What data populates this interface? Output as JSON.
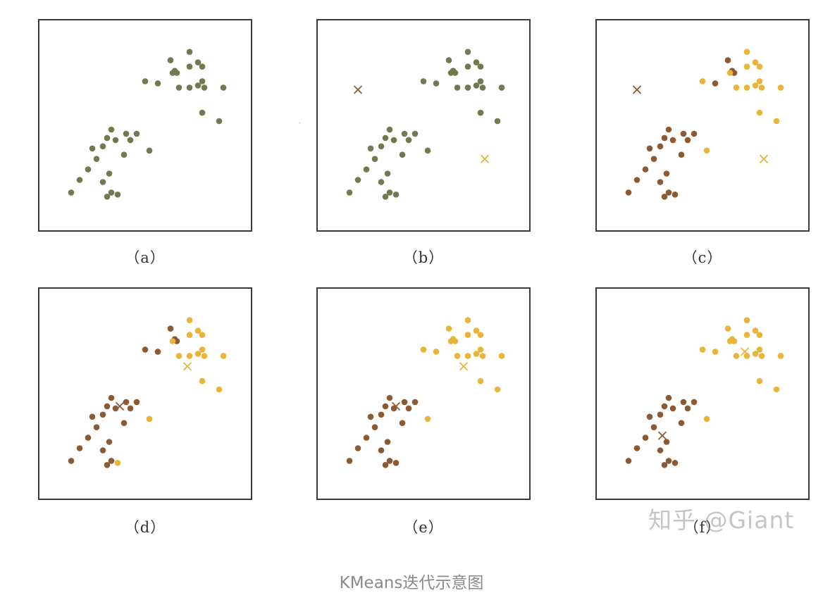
{
  "colors": {
    "gray": "#6f7a4e",
    "brown": "#8b5a33",
    "gold": "#e8b53a",
    "frame": "#3a3a3a"
  },
  "caption": "KMeans迭代示意图",
  "watermark": "知乎 @Giant",
  "points": [
    [
      0.15,
      0.82
    ],
    [
      0.19,
      0.76
    ],
    [
      0.23,
      0.71
    ],
    [
      0.27,
      0.66
    ],
    [
      0.3,
      0.6
    ],
    [
      0.25,
      0.61
    ],
    [
      0.32,
      0.56
    ],
    [
      0.34,
      0.52
    ],
    [
      0.36,
      0.57
    ],
    [
      0.41,
      0.54
    ],
    [
      0.43,
      0.57
    ],
    [
      0.46,
      0.54
    ],
    [
      0.4,
      0.64
    ],
    [
      0.33,
      0.73
    ],
    [
      0.3,
      0.77
    ],
    [
      0.34,
      0.82
    ],
    [
      0.32,
      0.84
    ],
    [
      0.37,
      0.83
    ],
    [
      0.52,
      0.62
    ],
    [
      0.5,
      0.29
    ],
    [
      0.56,
      0.3
    ],
    [
      0.62,
      0.19
    ],
    [
      0.64,
      0.24
    ],
    [
      0.65,
      0.25
    ],
    [
      0.63,
      0.25
    ],
    [
      0.66,
      0.32
    ],
    [
      0.71,
      0.15
    ],
    [
      0.71,
      0.22
    ],
    [
      0.71,
      0.32
    ],
    [
      0.75,
      0.2
    ],
    [
      0.77,
      0.22
    ],
    [
      0.75,
      0.31
    ],
    [
      0.77,
      0.29
    ],
    [
      0.78,
      0.32
    ],
    [
      0.87,
      0.32
    ],
    [
      0.77,
      0.44
    ],
    [
      0.85,
      0.48
    ]
  ],
  "panels": [
    {
      "id": "a",
      "label": "（a）",
      "point_clusters": "0000000000000000000000000000000000000",
      "centroids": []
    },
    {
      "id": "b",
      "label": "（b）",
      "point_clusters": "0000000000000000000000000000000000000",
      "centroids": [
        [
          0.19,
          0.33,
          1
        ],
        [
          0.79,
          0.66,
          2
        ]
      ]
    },
    {
      "id": "c",
      "label": "（c）",
      "point_clusters": "1111111111111111112211112222222222222",
      "centroids": [
        [
          0.19,
          0.33,
          1
        ],
        [
          0.79,
          0.66,
          2
        ]
      ]
    },
    {
      "id": "d",
      "label": "（d）",
      "point_clusters": "1111111111111111122111112222222222222",
      "centroids": [
        [
          0.38,
          0.56,
          1
        ],
        [
          0.7,
          0.37,
          2
        ]
      ]
    },
    {
      "id": "e",
      "label": "（e）",
      "point_clusters": "1111111111111111112222222222222222222",
      "centroids": [
        [
          0.37,
          0.56,
          1
        ],
        [
          0.69,
          0.37,
          2
        ]
      ]
    },
    {
      "id": "f",
      "label": "（f）",
      "point_clusters": "1111111111111111112222222222222222222",
      "centroids": [
        [
          0.31,
          0.7,
          1
        ],
        [
          0.7,
          0.3,
          2
        ]
      ]
    }
  ]
}
